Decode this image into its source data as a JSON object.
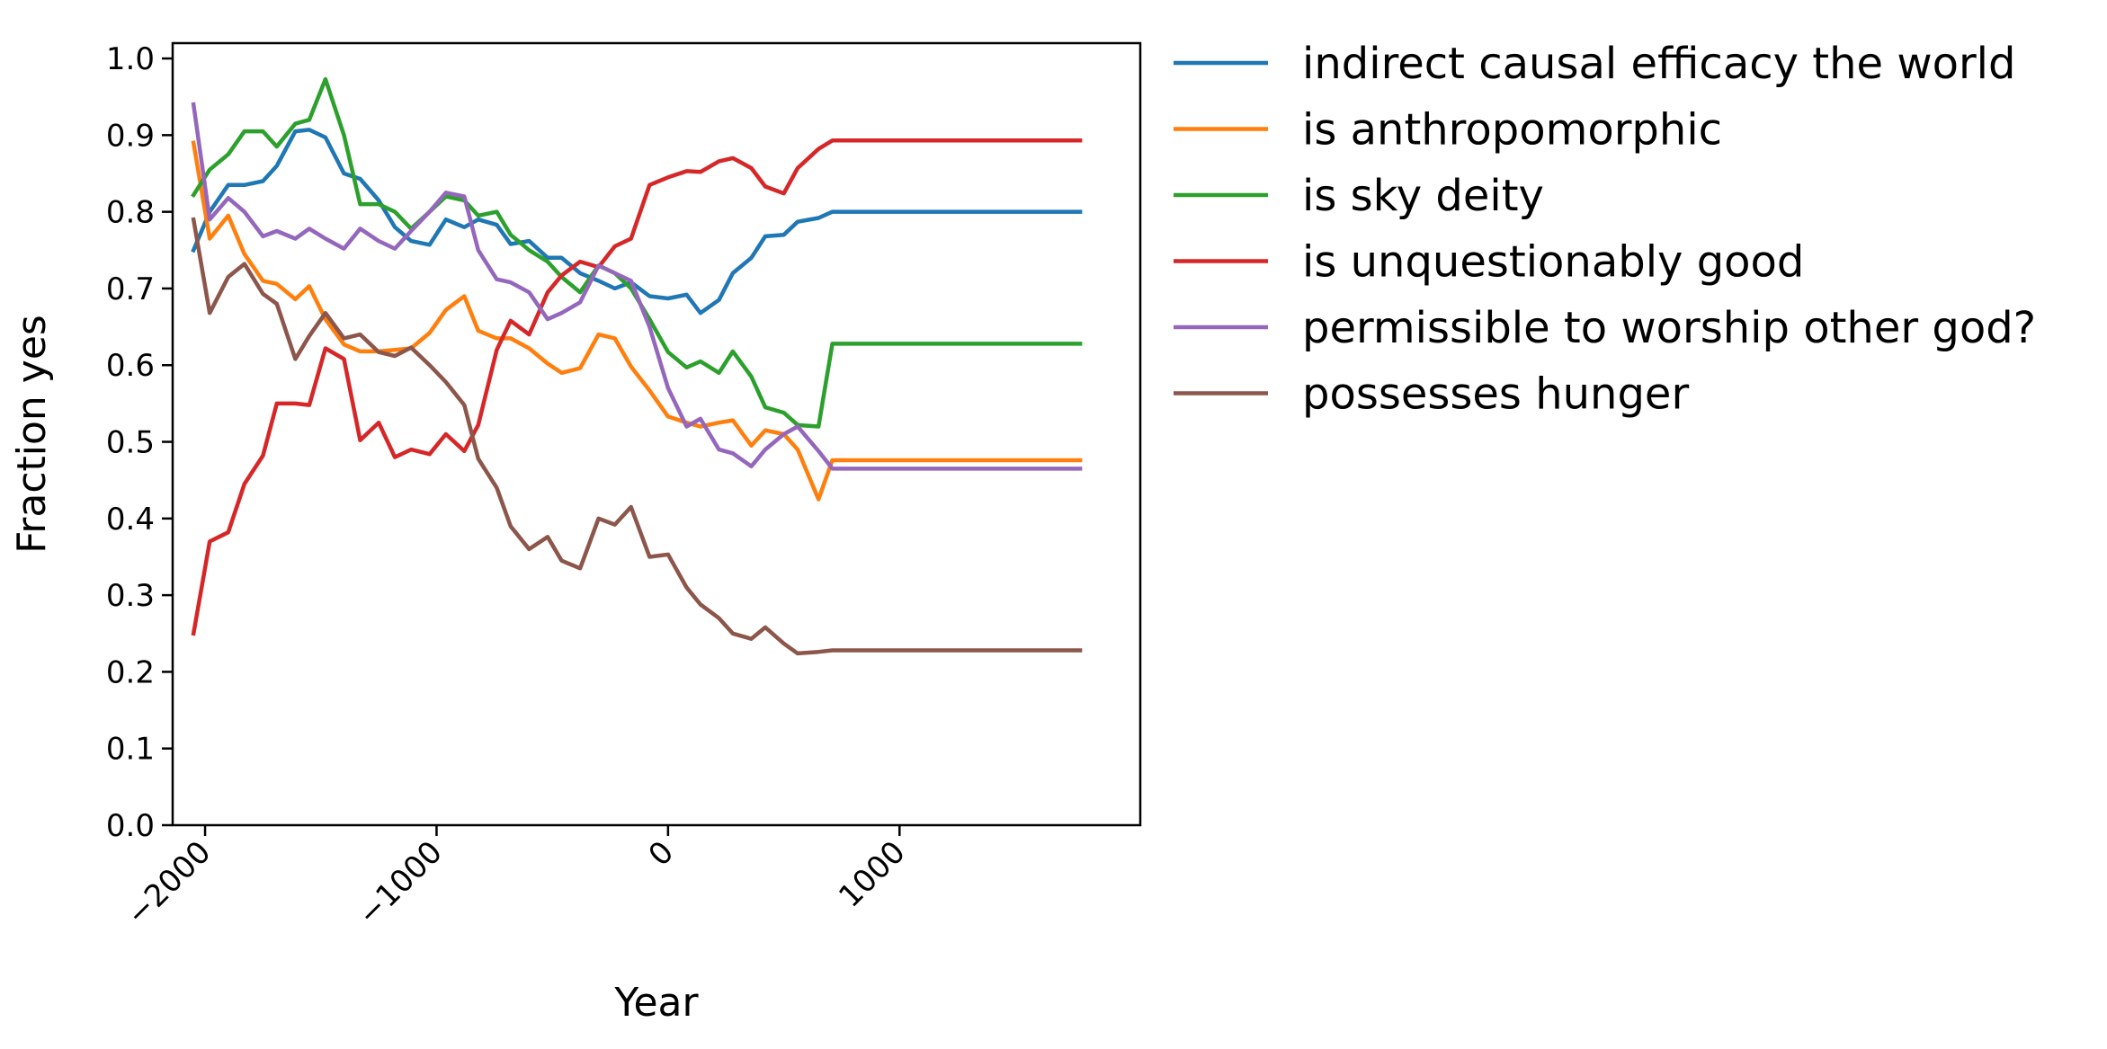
{
  "chart_data": {
    "type": "line",
    "title": "",
    "xlabel": "Year",
    "ylabel": "Fraction yes",
    "xlim": [
      -2140,
      2040
    ],
    "ylim": [
      0.0,
      1.02
    ],
    "x_ticks": [
      -2000,
      -1000,
      0,
      1000
    ],
    "x_tick_labels": [
      "−2000",
      "−1000",
      "0",
      "1000"
    ],
    "y_ticks": [
      0.0,
      0.1,
      0.2,
      0.3,
      0.4,
      0.5,
      0.6,
      0.7,
      0.8,
      0.9,
      1.0
    ],
    "y_tick_labels": [
      "0.0",
      "0.1",
      "0.2",
      "0.3",
      "0.4",
      "0.5",
      "0.6",
      "0.7",
      "0.8",
      "0.9",
      "1.0"
    ],
    "grid": false,
    "legend_position": "outside-right-top",
    "x": [
      -2050,
      -1980,
      -1900,
      -1830,
      -1750,
      -1690,
      -1610,
      -1550,
      -1480,
      -1400,
      -1330,
      -1250,
      -1180,
      -1110,
      -1030,
      -960,
      -880,
      -820,
      -740,
      -680,
      -600,
      -520,
      -460,
      -380,
      -300,
      -230,
      -160,
      -80,
      0,
      80,
      140,
      220,
      280,
      360,
      420,
      500,
      560,
      650,
      710,
      790,
      850,
      920,
      990,
      1070,
      1130,
      1210,
      1280,
      1360,
      1420,
      1500,
      1570,
      1650,
      1720,
      1780
    ],
    "series": [
      {
        "name": "indirect causal efficacy the world",
        "color": "#1f77b4",
        "values": [
          0.75,
          0.8,
          0.835,
          0.835,
          0.84,
          0.86,
          0.905,
          0.907,
          0.897,
          0.85,
          0.843,
          0.815,
          0.78,
          0.762,
          0.757,
          0.79,
          0.78,
          0.79,
          0.783,
          0.758,
          0.762,
          0.74,
          0.74,
          0.72,
          0.71,
          0.7,
          0.708,
          0.69,
          0.687,
          0.692,
          0.668,
          0.685,
          0.72,
          0.74,
          0.768,
          0.77,
          0.787,
          0.792,
          0.8,
          0.8,
          0.8,
          0.8,
          0.8,
          0.8,
          0.8,
          0.8,
          0.8,
          0.8,
          0.8,
          0.8,
          0.8,
          0.8,
          0.8,
          0.8
        ]
      },
      {
        "name": "is anthropomorphic",
        "color": "#ff7f0e",
        "values": [
          0.89,
          0.765,
          0.795,
          0.745,
          0.71,
          0.706,
          0.686,
          0.703,
          0.66,
          0.627,
          0.618,
          0.618,
          0.62,
          0.622,
          0.642,
          0.672,
          0.69,
          0.645,
          0.635,
          0.635,
          0.622,
          0.602,
          0.59,
          0.596,
          0.64,
          0.635,
          0.598,
          0.567,
          0.533,
          0.525,
          0.52,
          0.525,
          0.528,
          0.495,
          0.515,
          0.51,
          0.49,
          0.425,
          0.476,
          0.476,
          0.476,
          0.476,
          0.476,
          0.476,
          0.476,
          0.476,
          0.476,
          0.476,
          0.476,
          0.476,
          0.476,
          0.476,
          0.476,
          0.476
        ]
      },
      {
        "name": "is sky deity",
        "color": "#2ca02c",
        "values": [
          0.822,
          0.855,
          0.875,
          0.905,
          0.905,
          0.885,
          0.915,
          0.92,
          0.973,
          0.9,
          0.81,
          0.81,
          0.8,
          0.778,
          0.8,
          0.82,
          0.815,
          0.795,
          0.8,
          0.77,
          0.75,
          0.735,
          0.715,
          0.695,
          0.73,
          0.72,
          0.7,
          0.66,
          0.617,
          0.597,
          0.605,
          0.59,
          0.618,
          0.585,
          0.545,
          0.538,
          0.522,
          0.52,
          0.628,
          0.628,
          0.628,
          0.628,
          0.628,
          0.628,
          0.628,
          0.628,
          0.628,
          0.628,
          0.628,
          0.628,
          0.628,
          0.628,
          0.628,
          0.628
        ]
      },
      {
        "name": "is unquestionably good",
        "color": "#d62728",
        "values": [
          0.25,
          0.37,
          0.382,
          0.445,
          0.482,
          0.55,
          0.55,
          0.548,
          0.622,
          0.608,
          0.502,
          0.525,
          0.48,
          0.49,
          0.484,
          0.51,
          0.488,
          0.522,
          0.62,
          0.658,
          0.64,
          0.695,
          0.717,
          0.735,
          0.728,
          0.755,
          0.765,
          0.835,
          0.845,
          0.853,
          0.852,
          0.866,
          0.87,
          0.857,
          0.833,
          0.824,
          0.857,
          0.882,
          0.893,
          0.893,
          0.893,
          0.893,
          0.893,
          0.893,
          0.893,
          0.893,
          0.893,
          0.893,
          0.893,
          0.893,
          0.893,
          0.893,
          0.893,
          0.893
        ]
      },
      {
        "name": "permissible to worship other god?",
        "color": "#9467bd",
        "values": [
          0.94,
          0.79,
          0.818,
          0.8,
          0.768,
          0.775,
          0.765,
          0.778,
          0.765,
          0.752,
          0.778,
          0.762,
          0.752,
          0.775,
          0.8,
          0.825,
          0.82,
          0.75,
          0.712,
          0.708,
          0.695,
          0.66,
          0.668,
          0.682,
          0.73,
          0.72,
          0.71,
          0.65,
          0.57,
          0.52,
          0.53,
          0.49,
          0.485,
          0.468,
          0.49,
          0.51,
          0.52,
          0.488,
          0.465,
          0.465,
          0.465,
          0.465,
          0.465,
          0.465,
          0.465,
          0.465,
          0.465,
          0.465,
          0.465,
          0.465,
          0.465,
          0.465,
          0.465,
          0.465
        ]
      },
      {
        "name": "possesses hunger",
        "color": "#8c564b",
        "values": [
          0.79,
          0.668,
          0.715,
          0.732,
          0.693,
          0.68,
          0.608,
          0.638,
          0.668,
          0.635,
          0.64,
          0.617,
          0.612,
          0.623,
          0.6,
          0.578,
          0.548,
          0.478,
          0.44,
          0.39,
          0.36,
          0.376,
          0.345,
          0.335,
          0.4,
          0.392,
          0.415,
          0.35,
          0.353,
          0.31,
          0.288,
          0.27,
          0.25,
          0.243,
          0.258,
          0.237,
          0.224,
          0.226,
          0.228,
          0.228,
          0.228,
          0.228,
          0.228,
          0.228,
          0.228,
          0.228,
          0.228,
          0.228,
          0.228,
          0.228,
          0.228,
          0.228,
          0.228,
          0.228
        ]
      }
    ]
  }
}
